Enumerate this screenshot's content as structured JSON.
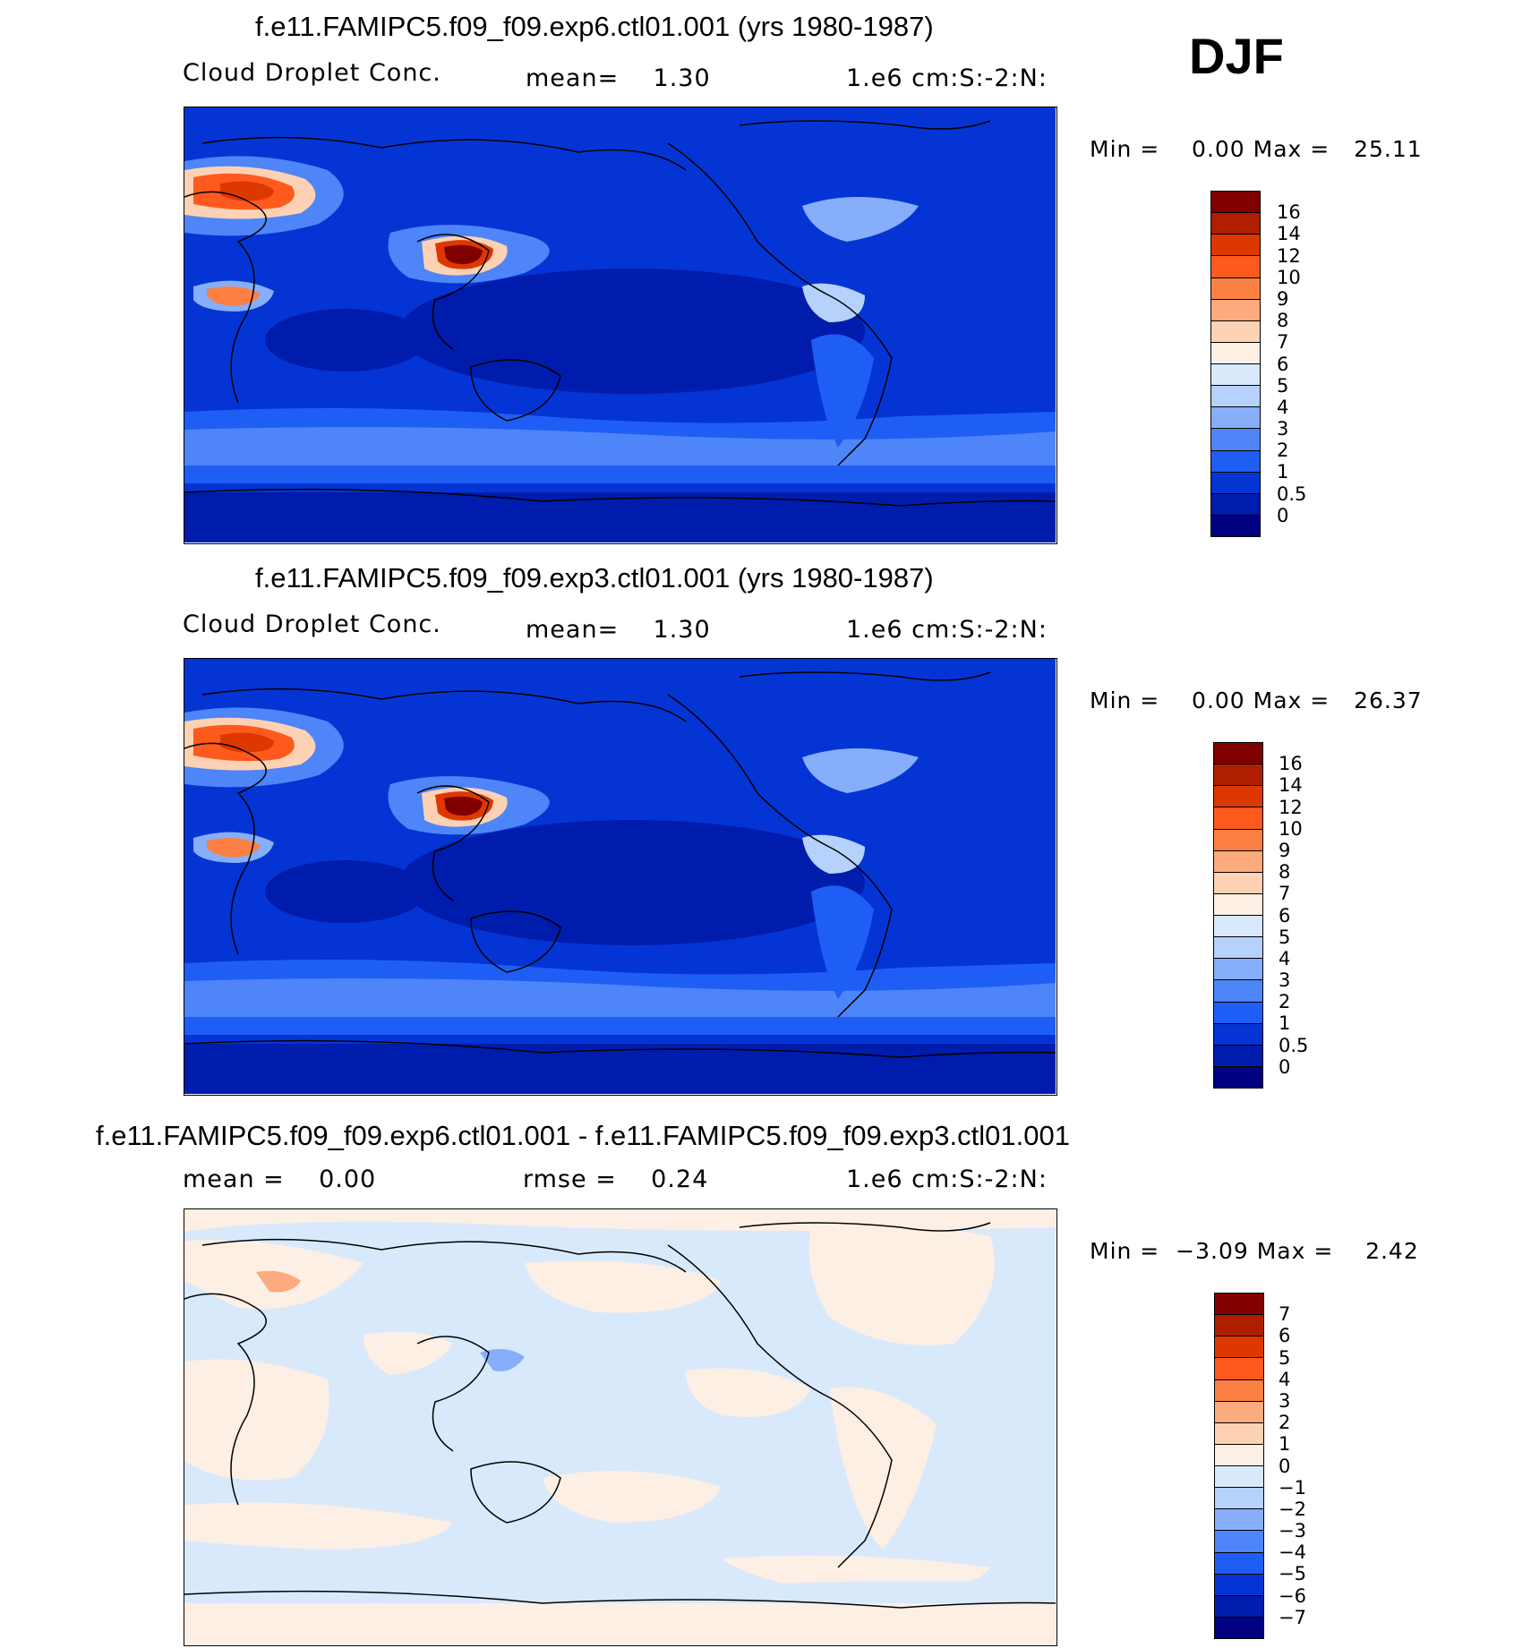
{
  "season": "DJF",
  "panels": [
    {
      "title": "f.e11.FAMIPC5.f09_f09.exp6.ctl01.001 (yrs 1980-1987)",
      "field": "Cloud Droplet Conc.",
      "stat_text": "mean=    1.30",
      "units": "1.e6 cm:S:-2:N:",
      "minmax": "Min =    0.00 Max =   25.11",
      "colorbar": {
        "labels": [
          "16",
          "14",
          "12",
          "10",
          "9",
          "8",
          "7",
          "6",
          "5",
          "4",
          "3",
          "2",
          "1",
          "0.5",
          "0"
        ],
        "colors": [
          "#800000",
          "#b01e00",
          "#dd3800",
          "#fe5a1e",
          "#fc8043",
          "#fcaa7e",
          "#fdd2b4",
          "#fdefe3",
          "#d8e9fc",
          "#b5d1fc",
          "#86aefa",
          "#4e85f9",
          "#1f5ef5",
          "#0434d4",
          "#001cac",
          "#000080"
        ]
      },
      "chart_data": {
        "type": "heatmap",
        "field": "Cloud Droplet Conc.",
        "units": "1.e6 cm:S:-2:N:",
        "mean": 1.3,
        "min": 0.0,
        "max": 25.11,
        "contour_levels": [
          0,
          0.5,
          1,
          2,
          3,
          4,
          5,
          6,
          7,
          8,
          9,
          10,
          12,
          14,
          16
        ],
        "projection": "cylindrical equidistant, centered on Pacific"
      }
    },
    {
      "title": "f.e11.FAMIPC5.f09_f09.exp3.ctl01.001 (yrs 1980-1987)",
      "field": "Cloud Droplet Conc.",
      "stat_text": "mean=    1.30",
      "units": "1.e6 cm:S:-2:N:",
      "minmax": "Min =    0.00 Max =   26.37",
      "colorbar": {
        "labels": [
          "16",
          "14",
          "12",
          "10",
          "9",
          "8",
          "7",
          "6",
          "5",
          "4",
          "3",
          "2",
          "1",
          "0.5",
          "0"
        ],
        "colors": [
          "#800000",
          "#b01e00",
          "#dd3800",
          "#fe5a1e",
          "#fc8043",
          "#fcaa7e",
          "#fdd2b4",
          "#fdefe3",
          "#d8e9fc",
          "#b5d1fc",
          "#86aefa",
          "#4e85f9",
          "#1f5ef5",
          "#0434d4",
          "#001cac",
          "#000080"
        ]
      },
      "chart_data": {
        "type": "heatmap",
        "field": "Cloud Droplet Conc.",
        "units": "1.e6 cm:S:-2:N:",
        "mean": 1.3,
        "min": 0.0,
        "max": 26.37,
        "contour_levels": [
          0,
          0.5,
          1,
          2,
          3,
          4,
          5,
          6,
          7,
          8,
          9,
          10,
          12,
          14,
          16
        ],
        "projection": "cylindrical equidistant, centered on Pacific"
      }
    },
    {
      "title": "f.e11.FAMIPC5.f09_f09.exp6.ctl01.001 - f.e11.FAMIPC5.f09_f09.exp3.ctl01.001",
      "field": "mean =    0.00",
      "stat_text": "rmse =    0.24",
      "units": "1.e6 cm:S:-2:N:",
      "minmax": "Min =  −3.09 Max =    2.42",
      "colorbar": {
        "labels": [
          "7",
          "6",
          "5",
          "4",
          "3",
          "2",
          "1",
          "0",
          "−1",
          "−2",
          "−3",
          "−4",
          "−5",
          "−6",
          "−7"
        ],
        "colors": [
          "#800000",
          "#b01e00",
          "#dd3800",
          "#fe5a1e",
          "#fc8043",
          "#fcaa7e",
          "#fdd2b4",
          "#fdefe3",
          "#d8e9fc",
          "#b5d1fc",
          "#86aefa",
          "#4e85f9",
          "#1f5ef5",
          "#0434d4",
          "#001cac",
          "#000080"
        ]
      },
      "chart_data": {
        "type": "heatmap",
        "units": "1.e6 cm:S:-2:N:",
        "mean": 0.0,
        "rmse": 0.24,
        "min": -3.09,
        "max": 2.42,
        "contour_levels": [
          -7,
          -6,
          -5,
          -4,
          -3,
          -2,
          -1,
          0,
          1,
          2,
          3,
          4,
          5,
          6,
          7
        ],
        "projection": "cylindrical equidistant, centered on Pacific"
      }
    }
  ]
}
